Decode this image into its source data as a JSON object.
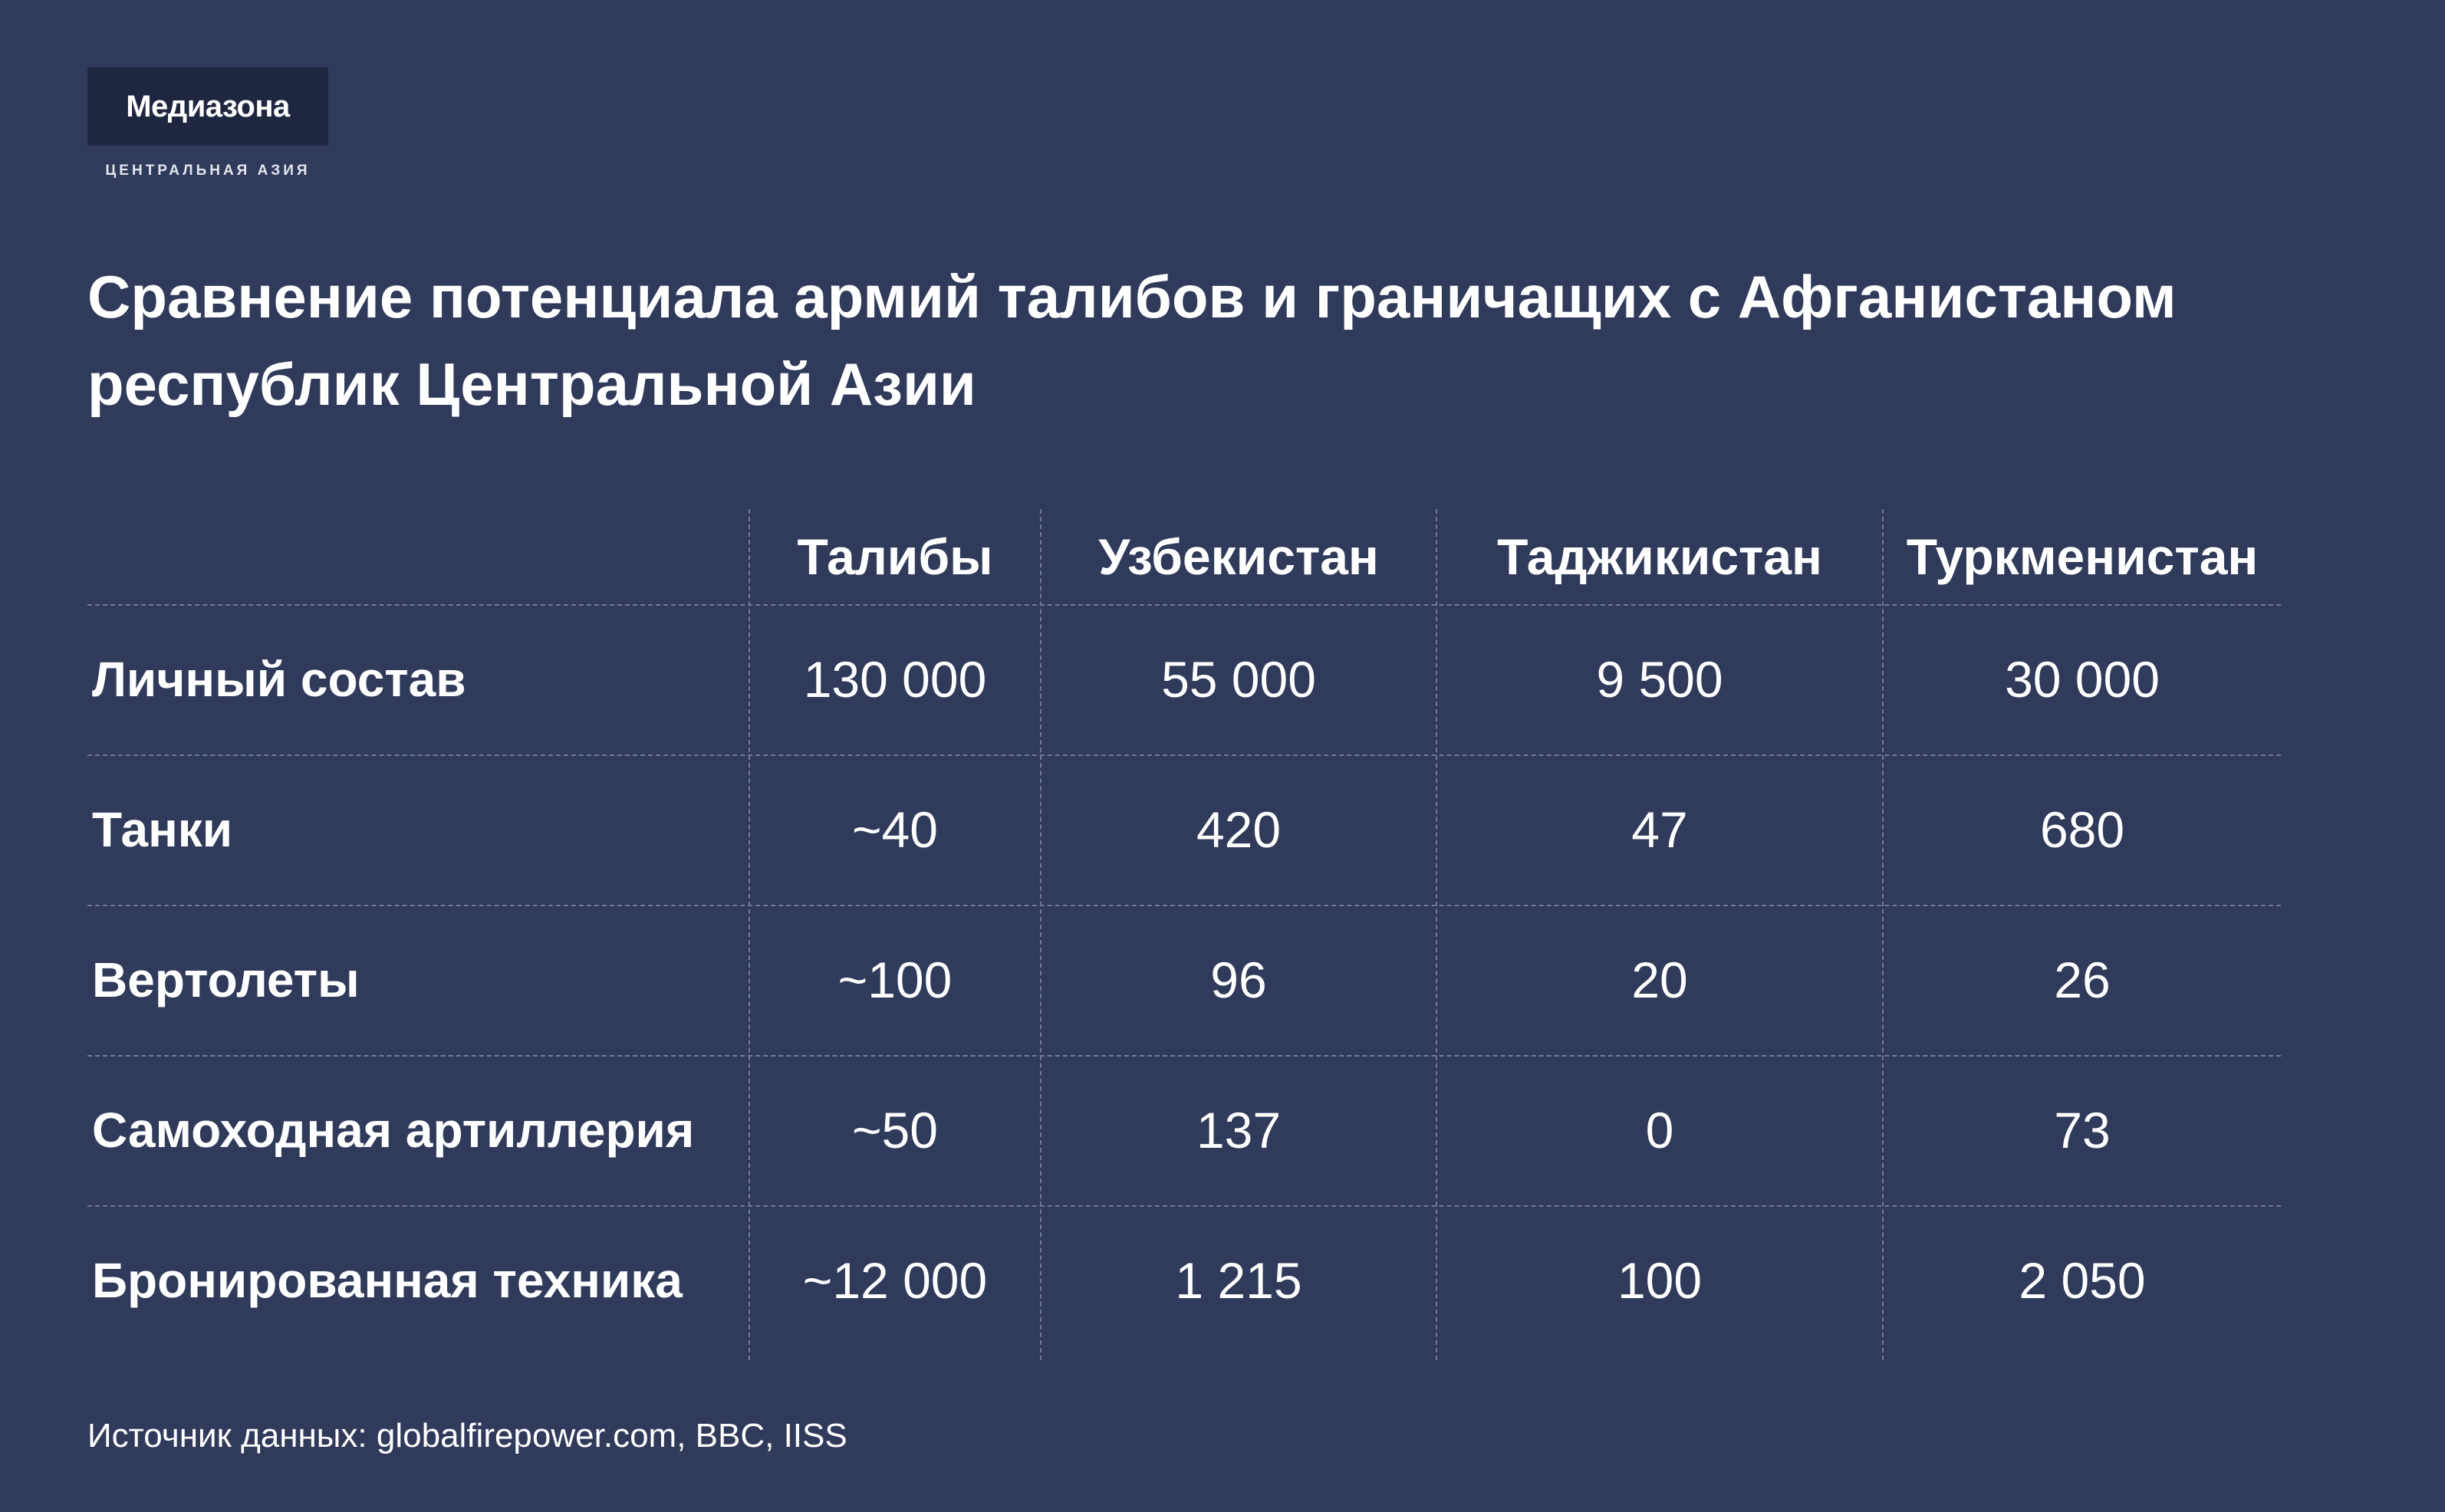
{
  "brand": {
    "name": "Медиазона",
    "subtitle": "ЦЕНТРАЛЬНАЯ АЗИЯ"
  },
  "title": "Сравнение потенциала армий талибов и граничащих с Афганистаном республик Центральной Азии",
  "table": {
    "columns": [
      "Талибы",
      "Узбекистан",
      "Таджикистан",
      "Туркменистан"
    ],
    "rows": [
      {
        "label": "Личный состав",
        "values": [
          "130 000",
          "55 000",
          "9 500",
          "30 000"
        ]
      },
      {
        "label": "Танки",
        "values": [
          "~40",
          "420",
          "47",
          "680"
        ]
      },
      {
        "label": "Вертолеты",
        "values": [
          "~100",
          "96",
          "20",
          "26"
        ]
      },
      {
        "label": "Самоходная артиллерия",
        "values": [
          "~50",
          "137",
          "0",
          "73"
        ]
      },
      {
        "label": "Бронированная техника",
        "values": [
          "~12 000",
          "1 215",
          "100",
          "2 050"
        ]
      }
    ]
  },
  "source": "Источник данных: globalfirepower.com, BBC, IISS"
}
